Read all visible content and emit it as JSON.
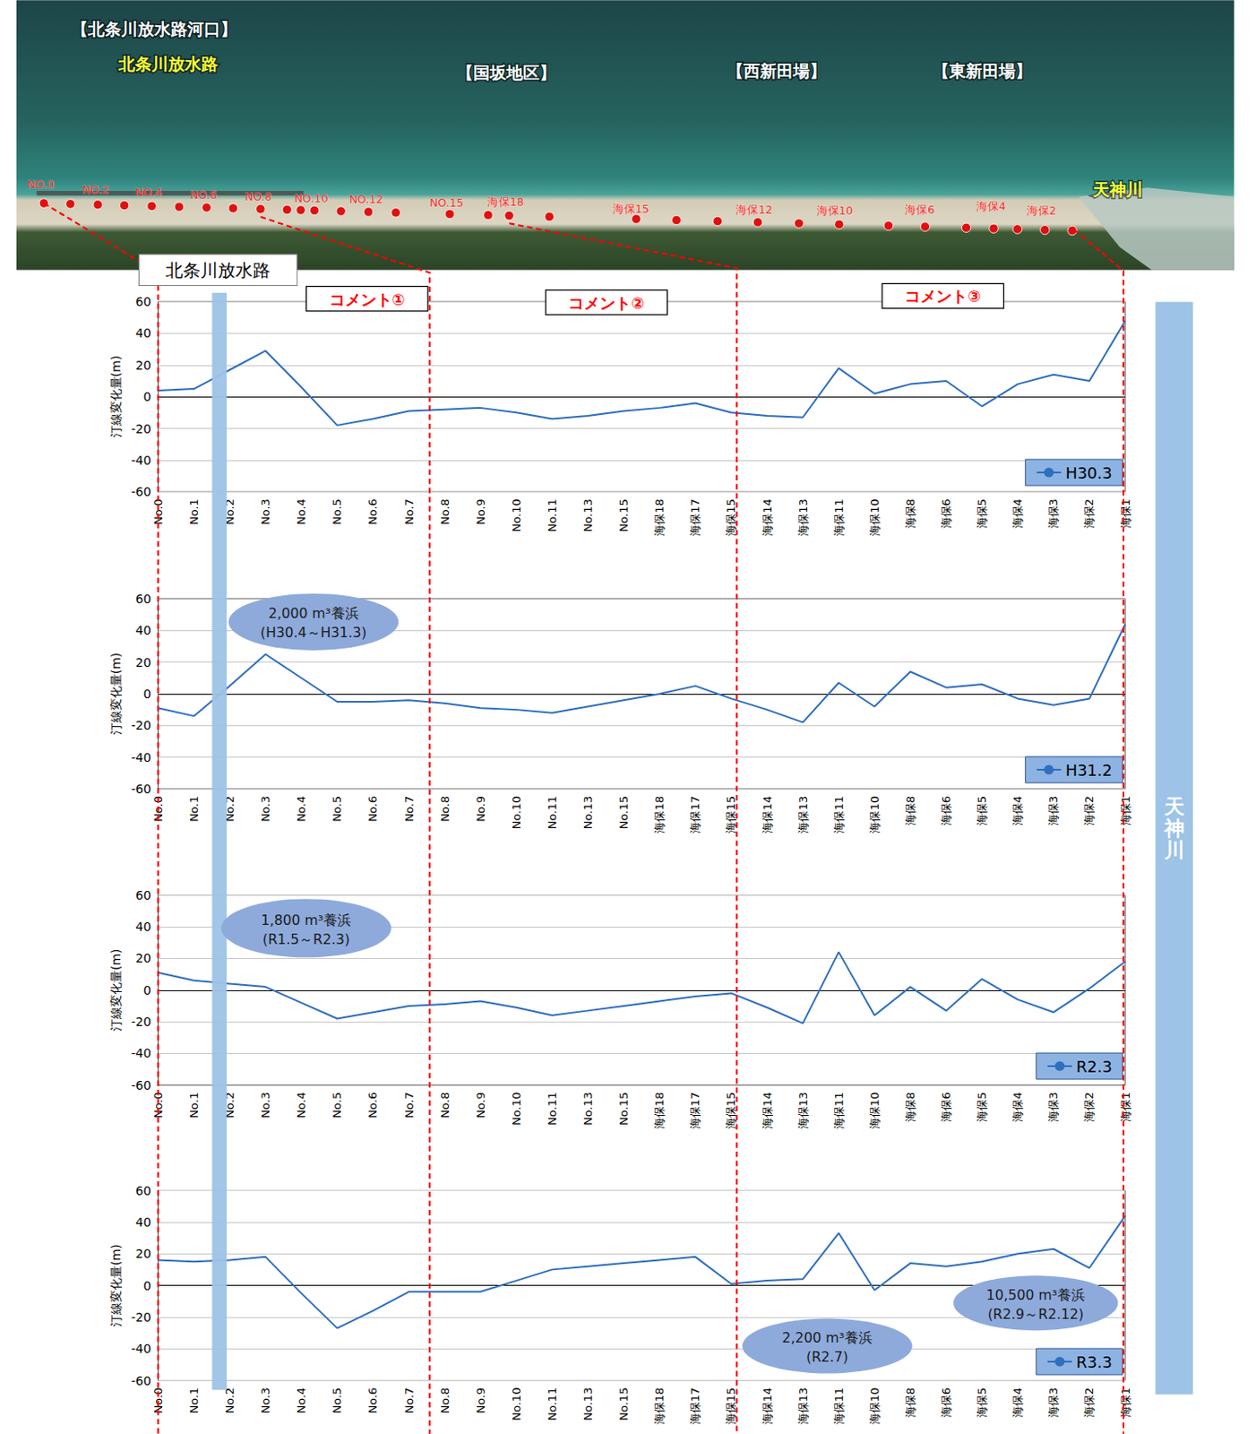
{
  "header": {
    "photo_labels": [
      "【北条川放水路河口】",
      "北条川放水路",
      "【国坂地区】",
      "【西新田場】",
      "【東新田場】",
      "天神川"
    ],
    "station_labels": [
      "NO.0",
      "NO.2",
      "NO.4",
      "NO.6",
      "NO.8",
      "NO.10",
      "NO.12",
      "NO.15",
      "海保18",
      "海保15",
      "海保12",
      "海保10",
      "海保6",
      "海保4",
      "海保2"
    ],
    "channel_label": "北条川放水路",
    "comments": [
      "コメント①",
      "コメント②",
      "コメント③"
    ],
    "river_label": "天神川"
  },
  "chart_data": [
    {
      "type": "line",
      "ylabel": "汀線変化量(m)",
      "categories": [
        "No.0",
        "No.1",
        "No.2",
        "No.3",
        "No.4",
        "No.5",
        "No.6",
        "No.7",
        "No.8",
        "No.9",
        "No.10",
        "No.11",
        "No.13",
        "No.15",
        "海保18",
        "海保17",
        "海保15",
        "海保14",
        "海保13",
        "海保11",
        "海保10",
        "海保8",
        "海保6",
        "海保5",
        "海保4",
        "海保3",
        "海保2",
        "海保1"
      ],
      "series": [
        {
          "name": "H30.3",
          "color": "#2f6fbf",
          "values": [
            4,
            5,
            17,
            29,
            6,
            -18,
            -14,
            -9,
            -8,
            -7,
            -10,
            -14,
            -12,
            -9,
            -7,
            -4,
            -10,
            -12,
            -13,
            18,
            2,
            8,
            10,
            -6,
            8,
            14,
            10,
            48
          ]
        }
      ],
      "ylim": [
        -60,
        60
      ],
      "yticks": [
        -60,
        -40,
        -20,
        0,
        20,
        40,
        60
      ],
      "grid": true,
      "legend": "lower right",
      "annotations": []
    },
    {
      "type": "line",
      "ylabel": "汀線変化量(m)",
      "categories": [
        "No.0",
        "No.1",
        "No.2",
        "No.3",
        "No.4",
        "No.5",
        "No.6",
        "No.7",
        "No.8",
        "No.9",
        "No.10",
        "No.11",
        "No.13",
        "No.15",
        "海保18",
        "海保17",
        "海保15",
        "海保14",
        "海保13",
        "海保11",
        "海保10",
        "海保8",
        "海保6",
        "海保5",
        "海保4",
        "海保3",
        "海保2",
        "海保1"
      ],
      "series": [
        {
          "name": "H31.2",
          "color": "#2f6fbf",
          "values": [
            -9,
            -14,
            5,
            25,
            10,
            -5,
            -5,
            -4,
            -6,
            -9,
            -10,
            -12,
            -8,
            -4,
            0,
            5,
            -3,
            -10,
            -18,
            7,
            -8,
            14,
            4,
            6,
            -3,
            -7,
            -3,
            44
          ]
        }
      ],
      "ylim": [
        -60,
        60
      ],
      "yticks": [
        -60,
        -40,
        -20,
        0,
        20,
        40,
        60
      ],
      "grid": true,
      "legend": "lower right",
      "annotations": [
        {
          "text": "2,000 m³養浜",
          "period": "(H30.4～H31.3)"
        }
      ]
    },
    {
      "type": "line",
      "ylabel": "汀線変化量(m)",
      "categories": [
        "No.0",
        "No.1",
        "No.2",
        "No.3",
        "No.4",
        "No.5",
        "No.6",
        "No.7",
        "No.8",
        "No.9",
        "No.10",
        "No.11",
        "No.13",
        "No.15",
        "海保18",
        "海保17",
        "海保15",
        "海保14",
        "海保13",
        "海保11",
        "海保10",
        "海保8",
        "海保6",
        "海保5",
        "海保4",
        "海保3",
        "海保2",
        "海保1"
      ],
      "series": [
        {
          "name": "R2.3",
          "color": "#2f6fbf",
          "values": [
            11,
            6,
            4,
            2,
            -8,
            -18,
            -14,
            -10,
            -9,
            -7,
            -11,
            -16,
            -13,
            -10,
            -7,
            -4,
            -2,
            -11,
            -21,
            24,
            -16,
            2,
            -13,
            7,
            -6,
            -14,
            1,
            18
          ]
        }
      ],
      "ylim": [
        -60,
        60
      ],
      "yticks": [
        -60,
        -40,
        -20,
        0,
        20,
        40,
        60
      ],
      "grid": true,
      "legend": "lower right",
      "annotations": [
        {
          "text": "1,800 m³養浜",
          "period": "(R1.5～R2.3)"
        }
      ]
    },
    {
      "type": "line",
      "ylabel": "汀線変化量(m)",
      "categories": [
        "No.0",
        "No.1",
        "No.2",
        "No.3",
        "No.4",
        "No.5",
        "No.6",
        "No.7",
        "No.8",
        "No.9",
        "No.10",
        "No.11",
        "No.13",
        "No.15",
        "海保18",
        "海保17",
        "海保15",
        "海保14",
        "海保13",
        "海保11",
        "海保10",
        "海保8",
        "海保6",
        "海保5",
        "海保4",
        "海保3",
        "海保2",
        "海保1"
      ],
      "series": [
        {
          "name": "R3.3",
          "color": "#2f6fbf",
          "values": [
            16,
            15,
            16,
            18,
            -5,
            -27,
            -16,
            -4,
            -4,
            -4,
            3,
            10,
            12,
            14,
            16,
            18,
            1,
            3,
            4,
            33,
            -3,
            14,
            12,
            15,
            20,
            23,
            11,
            44
          ]
        }
      ],
      "ylim": [
        -60,
        60
      ],
      "yticks": [
        -60,
        -40,
        -20,
        0,
        20,
        40,
        60
      ],
      "grid": true,
      "legend": "lower right",
      "annotations": [
        {
          "text": "2,200 m³養浜",
          "period": "(R2.7)"
        },
        {
          "text": "10,500 m³養浜",
          "period": "(R2.9～R2.12)"
        }
      ]
    }
  ]
}
